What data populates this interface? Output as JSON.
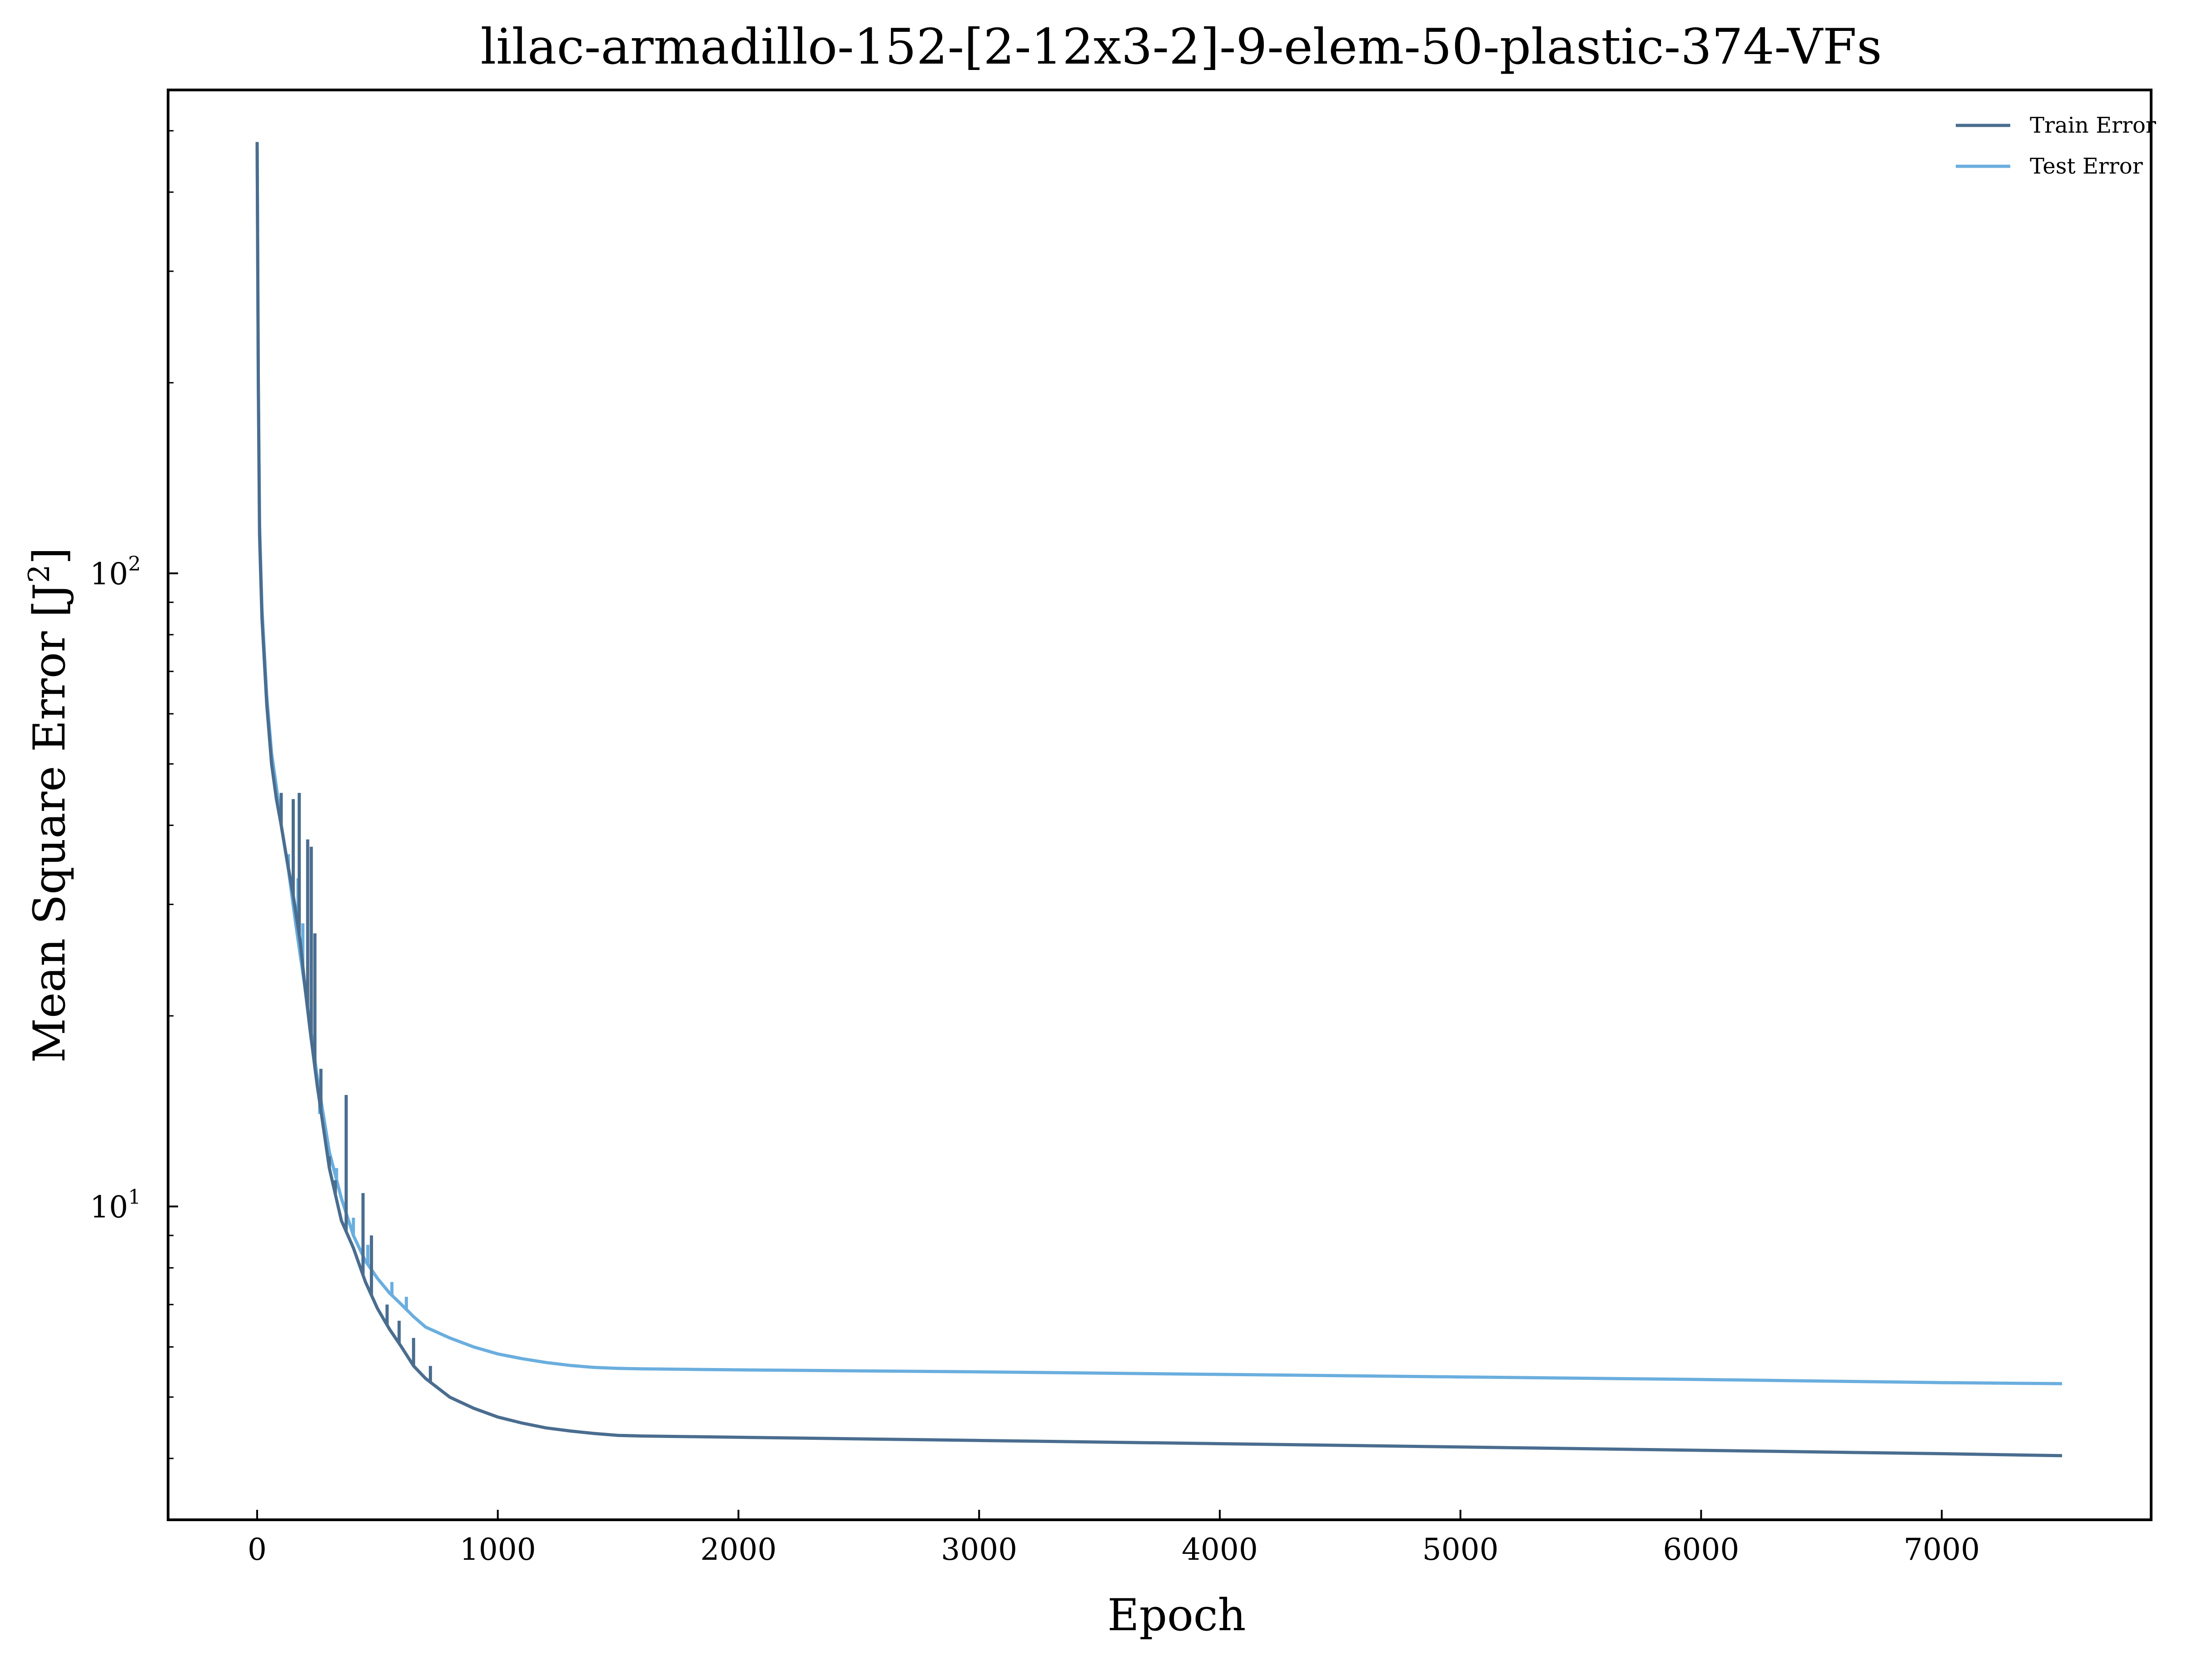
{
  "chart_data": {
    "type": "line",
    "title": "lilac-armadillo-152-[2-12x3-2]-9-elem-50-plastic-374-VFs",
    "xlabel": "Epoch",
    "ylabel": "Mean Square Error [J",
    "ylabel_superscript": "2",
    "ylabel_suffix": "]",
    "x_ticks": [
      0,
      1000,
      2000,
      3000,
      4000,
      5000,
      6000,
      7000
    ],
    "x_tick_labels": [
      "0",
      "1000",
      "2000",
      "3000",
      "4000",
      "5000",
      "6000",
      "7000"
    ],
    "y_scale": "log",
    "y_ticks": [
      {
        "value": 10,
        "base": "10",
        "exp": "1"
      },
      {
        "value": 100,
        "base": "10",
        "exp": "2"
      }
    ],
    "xlim": [
      -370,
      7870
    ],
    "ylim": [
      3.2,
      580
    ],
    "legend_position": "top-right",
    "series": [
      {
        "name": "Train Error",
        "color": "#4a6d8f",
        "x": [
          0,
          5,
          10,
          20,
          40,
          60,
          80,
          100,
          120,
          150,
          180,
          200,
          220,
          250,
          300,
          350,
          400,
          450,
          500,
          550,
          600,
          650,
          700,
          800,
          900,
          1000,
          1100,
          1200,
          1300,
          1400,
          1500,
          1600,
          1800,
          2000,
          3000,
          4000,
          5000,
          6000,
          7000,
          7500
        ],
        "y": [
          480,
          200,
          115,
          85,
          62,
          50,
          44,
          40,
          36,
          31,
          26,
          22,
          19,
          15.5,
          11.5,
          9.5,
          8.6,
          7.6,
          6.9,
          6.4,
          6.0,
          5.6,
          5.35,
          5.0,
          4.8,
          4.65,
          4.55,
          4.47,
          4.42,
          4.38,
          4.35,
          4.34,
          4.33,
          4.32,
          4.27,
          4.22,
          4.17,
          4.12,
          4.07,
          4.04
        ],
        "spikes": [
          {
            "x": 100,
            "y": 45
          },
          {
            "x": 150,
            "y": 44
          },
          {
            "x": 175,
            "y": 45
          },
          {
            "x": 210,
            "y": 38
          },
          {
            "x": 225,
            "y": 37
          },
          {
            "x": 240,
            "y": 27
          },
          {
            "x": 265,
            "y": 16.5
          },
          {
            "x": 300,
            "y": 12
          },
          {
            "x": 325,
            "y": 11
          },
          {
            "x": 370,
            "y": 15
          },
          {
            "x": 440,
            "y": 10.5
          },
          {
            "x": 475,
            "y": 9.0
          },
          {
            "x": 540,
            "y": 7.0
          },
          {
            "x": 590,
            "y": 6.6
          },
          {
            "x": 650,
            "y": 6.2
          },
          {
            "x": 720,
            "y": 5.6
          }
        ]
      },
      {
        "name": "Test Error",
        "color": "#6aaede",
        "x": [
          0,
          5,
          10,
          20,
          40,
          60,
          80,
          100,
          130,
          160,
          200,
          250,
          300,
          350,
          400,
          450,
          500,
          550,
          600,
          650,
          700,
          800,
          900,
          1000,
          1100,
          1200,
          1300,
          1400,
          1500,
          1600,
          1800,
          2000,
          3000,
          4000,
          5000,
          6000,
          7000,
          7500
        ],
        "y": [
          480,
          200,
          120,
          88,
          64,
          52,
          46,
          40,
          34,
          28,
          22,
          16,
          12.2,
          10.3,
          9.0,
          8.2,
          7.7,
          7.3,
          7.0,
          6.7,
          6.45,
          6.2,
          6.0,
          5.85,
          5.75,
          5.67,
          5.61,
          5.57,
          5.55,
          5.54,
          5.53,
          5.52,
          5.48,
          5.43,
          5.38,
          5.33,
          5.27,
          5.25
        ],
        "spikes": [
          {
            "x": 130,
            "y": 36
          },
          {
            "x": 170,
            "y": 33
          },
          {
            "x": 190,
            "y": 28
          },
          {
            "x": 260,
            "y": 14
          },
          {
            "x": 330,
            "y": 11.5
          },
          {
            "x": 400,
            "y": 9.6
          },
          {
            "x": 460,
            "y": 8.7
          },
          {
            "x": 560,
            "y": 7.6
          },
          {
            "x": 620,
            "y": 7.2
          }
        ]
      }
    ]
  }
}
